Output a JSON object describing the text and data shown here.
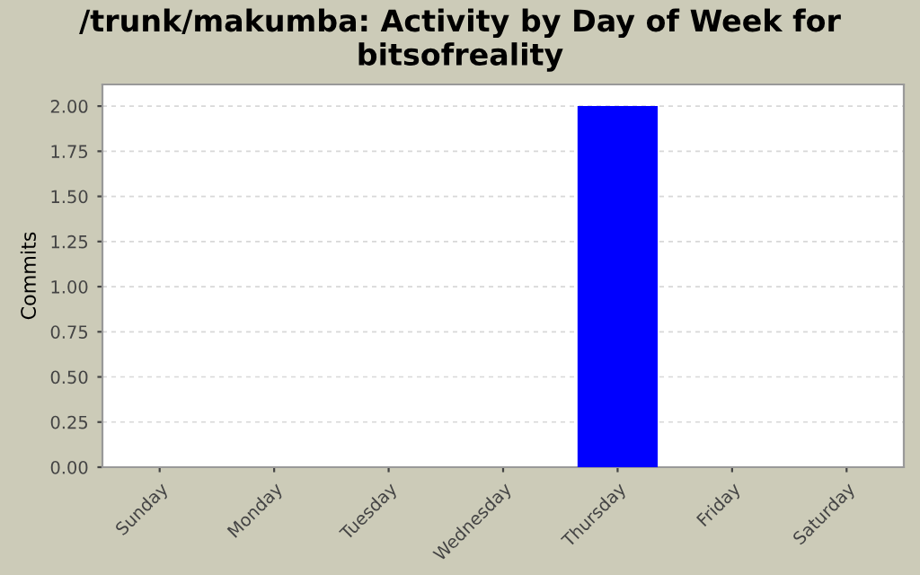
{
  "chart_data": {
    "type": "bar",
    "title": "/trunk/makumba: Activity by Day of Week for bitsofreality",
    "ylabel": "Commits",
    "categories": [
      "Sunday",
      "Monday",
      "Tuesday",
      "Wednesday",
      "Thursday",
      "Friday",
      "Saturday"
    ],
    "values": [
      0,
      0,
      0,
      0,
      2,
      0,
      0
    ],
    "color": "#0000ff",
    "ylim": [
      0,
      2.12
    ],
    "yticks": [
      {
        "value": 0,
        "label": "0.00"
      },
      {
        "value": 0.25,
        "label": "0.25"
      },
      {
        "value": 0.5,
        "label": "0.50"
      },
      {
        "value": 0.75,
        "label": "0.75"
      },
      {
        "value": 1,
        "label": "1.00"
      },
      {
        "value": 1.25,
        "label": "1.25"
      },
      {
        "value": 1.5,
        "label": "1.50"
      },
      {
        "value": 1.75,
        "label": "1.75"
      },
      {
        "value": 2,
        "label": "2.00"
      }
    ],
    "grid": "y"
  }
}
